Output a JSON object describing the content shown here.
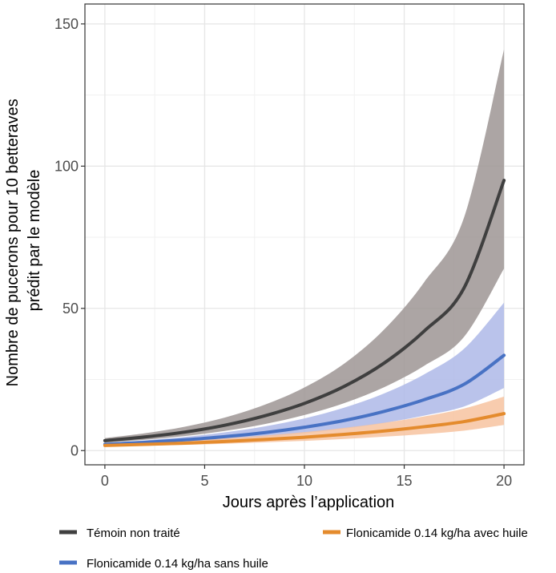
{
  "chart_data": {
    "type": "line",
    "title": "",
    "xlabel": "Jours après l’application",
    "ylabel_lines": [
      "Nombre de pucerons pour 10 betteraves",
      "prédit par le modèle"
    ],
    "xlim": [
      -1,
      21
    ],
    "ylim": [
      -5,
      157
    ],
    "x_ticks": [
      0,
      5,
      10,
      15,
      20
    ],
    "y_ticks": [
      0,
      50,
      100,
      150
    ],
    "grid": true,
    "legend_position": "bottom",
    "series": [
      {
        "name": "Témoin non traité",
        "color": "#3f3f3f",
        "band_color": "#9d9594",
        "x": [
          0,
          2,
          4,
          6,
          8,
          10,
          12,
          14,
          16,
          18,
          20
        ],
        "y": [
          3.5,
          4.8,
          6.5,
          8.9,
          12.2,
          16.6,
          22.6,
          30.8,
          42,
          57.2,
          95
        ],
        "lower": [
          2.8,
          3.8,
          5.1,
          6.9,
          9.3,
          12.5,
          16.7,
          22.3,
          29.8,
          40,
          64
        ],
        "upper": [
          4.4,
          6.1,
          8.4,
          11.6,
          16.1,
          22.2,
          30.6,
          42.6,
          59.2,
          82,
          141
        ]
      },
      {
        "name": "Flonicamide 0.14 kg/ha sans huile",
        "color": "#4872c4",
        "band_color": "#aeb9e8",
        "x": [
          0,
          2,
          4,
          6,
          8,
          10,
          12,
          14,
          16,
          18,
          20
        ],
        "y": [
          2.2,
          2.9,
          3.8,
          4.9,
          6.3,
          8.2,
          10.6,
          13.8,
          17.9,
          23.3,
          33.5
        ],
        "lower": [
          1.8,
          2.3,
          3.0,
          3.8,
          4.8,
          6.1,
          7.7,
          9.7,
          12.3,
          15.5,
          22
        ],
        "upper": [
          2.7,
          3.6,
          4.8,
          6.4,
          8.5,
          11.3,
          15.1,
          20.1,
          26.8,
          35.8,
          52
        ]
      },
      {
        "name": "Flonicamide 0.14 kg/ha avec huile",
        "color": "#e48b2d",
        "band_color": "#f7c3a0",
        "x": [
          0,
          2,
          4,
          6,
          8,
          10,
          12,
          14,
          16,
          18,
          20
        ],
        "y": [
          1.8,
          2.2,
          2.6,
          3.2,
          3.9,
          4.7,
          5.7,
          6.9,
          8.4,
          10.2,
          13
        ],
        "lower": [
          1.4,
          1.7,
          2.0,
          2.4,
          2.9,
          3.4,
          4.1,
          4.9,
          5.8,
          7.0,
          9
        ],
        "upper": [
          2.3,
          2.8,
          3.5,
          4.3,
          5.3,
          6.5,
          8.0,
          9.8,
          12.0,
          14.8,
          19
        ]
      }
    ]
  },
  "legend": {
    "items": [
      {
        "label": "Témoin non traité",
        "color": "#3f3f3f"
      },
      {
        "label": "Flonicamide 0.14 kg/ha avec huile",
        "color": "#e48b2d"
      },
      {
        "label": "Flonicamide 0.14 kg/ha sans huile",
        "color": "#4872c4"
      }
    ]
  }
}
